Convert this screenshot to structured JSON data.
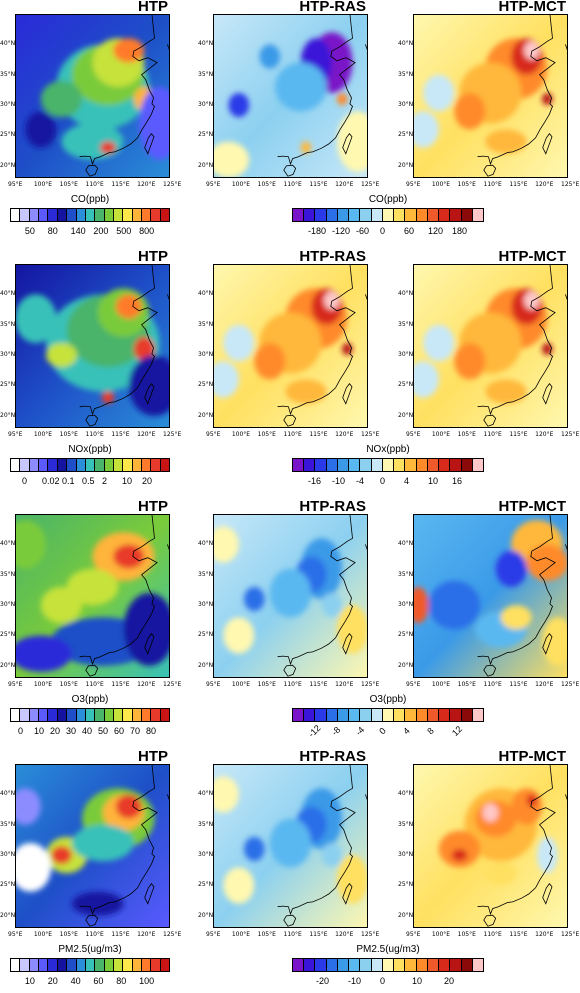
{
  "rows": [
    {
      "panels": [
        {
          "title": "HTP",
          "scheme": "abs_co"
        },
        {
          "title": "HTP-RAS",
          "scheme": "diff_blue"
        },
        {
          "title": "HTP-MCT",
          "scheme": "diff_red"
        }
      ],
      "abs_colorbar": {
        "label": "CO(ppb)",
        "colors": [
          "#ffffff",
          "#c8c8ff",
          "#8c8cff",
          "#5a5aff",
          "#2a2ad8",
          "#1414a0",
          "#1e4fc8",
          "#2a8ed8",
          "#37c1b9",
          "#49b46a",
          "#7acb3a",
          "#c6e23a",
          "#ffe84a",
          "#ffb43a",
          "#ff7a2a",
          "#e83a2a",
          "#c81414"
        ],
        "ticks": [
          "50",
          "80",
          "140",
          "200",
          "500",
          "800"
        ]
      },
      "diff_colorbar": {
        "label": "CO(ppb)",
        "colors": [
          "#7a14c8",
          "#3a14d8",
          "#2a3ae8",
          "#2a6ee8",
          "#3a9ae8",
          "#5ab8f0",
          "#8cd0f0",
          "#c8e8f8",
          "#fff8b0",
          "#ffe060",
          "#ffb83a",
          "#ff8a2a",
          "#f05a2a",
          "#d82a1a",
          "#b81414",
          "#8a0a0a",
          "#ffc8c8"
        ],
        "ticks": [
          "-180",
          "-120",
          "-60",
          "0",
          "60",
          "120",
          "180"
        ]
      }
    },
    {
      "panels": [
        {
          "title": "HTP",
          "scheme": "abs_nox"
        },
        {
          "title": "HTP-RAS",
          "scheme": "diff_red"
        },
        {
          "title": "HTP-MCT",
          "scheme": "diff_red"
        }
      ],
      "abs_colorbar": {
        "label": "NOx(ppb)",
        "colors": [
          "#ffffff",
          "#c8c8ff",
          "#8c8cff",
          "#5a5aff",
          "#2a2ad8",
          "#1414a0",
          "#1e4fc8",
          "#2a8ed8",
          "#37c1b9",
          "#49b46a",
          "#7acb3a",
          "#c6e23a",
          "#ffe84a",
          "#ffb43a",
          "#ff7a2a",
          "#e83a2a",
          "#c81414"
        ],
        "ticks": [
          "0",
          "0.02",
          "0.1",
          "0.5",
          "2",
          "10",
          "20"
        ]
      },
      "diff_colorbar": {
        "label": "NOx(ppb)",
        "colors": [
          "#7a14c8",
          "#3a14d8",
          "#2a3ae8",
          "#2a6ee8",
          "#3a9ae8",
          "#5ab8f0",
          "#8cd0f0",
          "#c8e8f8",
          "#fff8b0",
          "#ffe060",
          "#ffb83a",
          "#ff8a2a",
          "#f05a2a",
          "#d82a1a",
          "#b81414",
          "#8a0a0a",
          "#ffc8c8"
        ],
        "ticks": [
          "-16",
          "-10",
          "-4",
          "0",
          "4",
          "10",
          "16"
        ]
      }
    },
    {
      "panels": [
        {
          "title": "HTP",
          "scheme": "abs_o3"
        },
        {
          "title": "HTP-RAS",
          "scheme": "diff_blue_light"
        },
        {
          "title": "HTP-MCT",
          "scheme": "diff_mixed"
        }
      ],
      "abs_colorbar": {
        "label": "O3(ppb)",
        "colors": [
          "#ffffff",
          "#c8c8ff",
          "#8c8cff",
          "#5a5aff",
          "#2a2ad8",
          "#1414a0",
          "#1e4fc8",
          "#2a8ed8",
          "#37c1b9",
          "#49b46a",
          "#7acb3a",
          "#c6e23a",
          "#ffe84a",
          "#ffb43a",
          "#ff7a2a",
          "#e83a2a",
          "#c81414"
        ],
        "ticks": [
          "0",
          "10",
          "20",
          "30",
          "40",
          "50",
          "60",
          "70",
          "80"
        ]
      },
      "diff_colorbar": {
        "label": "O3(ppb)",
        "colors": [
          "#7a14c8",
          "#3a14d8",
          "#2a3ae8",
          "#2a6ee8",
          "#3a9ae8",
          "#5ab8f0",
          "#8cd0f0",
          "#c8e8f8",
          "#fff8b0",
          "#ffe060",
          "#ffb83a",
          "#ff8a2a",
          "#f05a2a",
          "#d82a1a",
          "#b81414",
          "#8a0a0a",
          "#ffc8c8"
        ],
        "ticks": [
          "-12",
          "-8",
          "-4",
          "0",
          "4",
          "8",
          "12"
        ]
      }
    },
    {
      "panels": [
        {
          "title": "HTP",
          "scheme": "abs_pm"
        },
        {
          "title": "HTP-RAS",
          "scheme": "diff_blue_light"
        },
        {
          "title": "HTP-MCT",
          "scheme": "diff_warm"
        }
      ],
      "abs_colorbar": {
        "label": "PM2.5(ug/m3)",
        "colors": [
          "#ffffff",
          "#c8c8ff",
          "#8c8cff",
          "#5a5aff",
          "#2a2ad8",
          "#1414a0",
          "#1e4fc8",
          "#2a8ed8",
          "#37c1b9",
          "#49b46a",
          "#7acb3a",
          "#c6e23a",
          "#ffe84a",
          "#ffb43a",
          "#ff7a2a",
          "#e83a2a",
          "#c81414"
        ],
        "ticks": [
          "10",
          "20",
          "40",
          "60",
          "80",
          "100"
        ]
      },
      "diff_colorbar": {
        "label": "PM2.5(ug/m3)",
        "colors": [
          "#7a14c8",
          "#3a14d8",
          "#2a3ae8",
          "#2a6ee8",
          "#3a9ae8",
          "#5ab8f0",
          "#8cd0f0",
          "#c8e8f8",
          "#fff8b0",
          "#ffe060",
          "#ffb83a",
          "#ff8a2a",
          "#f05a2a",
          "#d82a1a",
          "#b81414",
          "#8a0a0a",
          "#ffc8c8"
        ],
        "ticks": [
          "-20",
          "-10",
          "0",
          "10",
          "20"
        ]
      }
    }
  ],
  "lat_labels": [
    "40°N",
    "35°N",
    "30°N",
    "25°N",
    "20°N"
  ],
  "lon_labels": [
    "95°E",
    "100°E",
    "105°E",
    "110°E",
    "115°E",
    "120°E",
    "125°E"
  ],
  "chart_data": {
    "type": "heatmap",
    "title": "",
    "xlim": [
      95,
      125
    ],
    "ylim": [
      18,
      45
    ],
    "panels": [
      {
        "variable": "CO(ppb)",
        "columns": [
          "HTP",
          "HTP-RAS",
          "HTP-MCT"
        ]
      },
      {
        "variable": "NOx(ppb)",
        "columns": [
          "HTP",
          "HTP-RAS",
          "HTP-MCT"
        ]
      },
      {
        "variable": "O3(ppb)",
        "columns": [
          "HTP",
          "HTP-RAS",
          "HTP-MCT"
        ]
      },
      {
        "variable": "PM2.5(ug/m3)",
        "columns": [
          "HTP",
          "HTP-RAS",
          "HTP-MCT"
        ]
      }
    ]
  }
}
